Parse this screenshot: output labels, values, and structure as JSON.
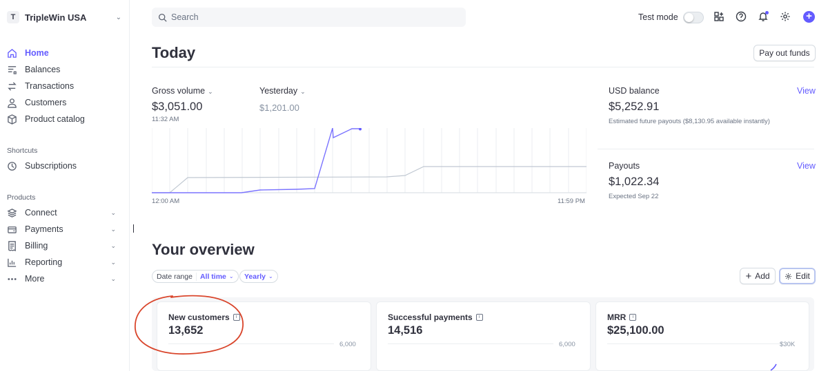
{
  "account": {
    "initial": "T",
    "name": "TripleWin USA"
  },
  "sidebar": {
    "items": [
      {
        "label": "Home",
        "icon": "home-icon",
        "active": true
      },
      {
        "label": "Balances",
        "icon": "balances-icon"
      },
      {
        "label": "Transactions",
        "icon": "transactions-icon"
      },
      {
        "label": "Customers",
        "icon": "customer-icon"
      },
      {
        "label": "Product catalog",
        "icon": "box-icon"
      }
    ],
    "shortcuts_label": "Shortcuts",
    "shortcuts": [
      {
        "label": "Subscriptions",
        "icon": "subscriptions-icon"
      }
    ],
    "products_label": "Products",
    "products": [
      {
        "label": "Connect",
        "icon": "layers-icon"
      },
      {
        "label": "Payments",
        "icon": "wallet-icon"
      },
      {
        "label": "Billing",
        "icon": "receipt-icon"
      },
      {
        "label": "Reporting",
        "icon": "bar-chart-icon"
      },
      {
        "label": "More",
        "icon": "ellipsis-icon"
      }
    ]
  },
  "topbar": {
    "search_placeholder": "Search",
    "test_mode_label": "Test mode",
    "test_mode_on": false
  },
  "today": {
    "title": "Today",
    "pay_out_label": "Pay out funds",
    "gross_volume_label": "Gross volume",
    "gross_volume_value": "$3,051.00",
    "gross_volume_time": "11:32 AM",
    "yesterday_label": "Yesterday",
    "yesterday_value": "$1,201.00",
    "chart_start": "12:00 AM",
    "chart_end": "11:59 PM",
    "usd_balance_label": "USD balance",
    "usd_balance_value": "$5,252.91",
    "usd_balance_note": "Estimated future payouts ($8,130.95 available instantly)",
    "payouts_label": "Payouts",
    "payouts_value": "$1,022.34",
    "payouts_note": "Expected Sep 22",
    "view_label": "View"
  },
  "overview": {
    "title": "Your overview",
    "date_range_label": "Date range",
    "date_range_value": "All time",
    "interval_value": "Yearly",
    "add_label": "Add",
    "edit_label": "Edit",
    "cards": [
      {
        "title": "New customers",
        "value": "13,652",
        "axis_max": "6,000"
      },
      {
        "title": "Successful payments",
        "value": "14,516",
        "axis_max": "6,000"
      },
      {
        "title": "MRR",
        "value": "$25,100.00",
        "axis_max": "$30K"
      }
    ]
  },
  "colors": {
    "accent": "#635bff",
    "annotation": "#d9452b",
    "text": "#30313d"
  }
}
